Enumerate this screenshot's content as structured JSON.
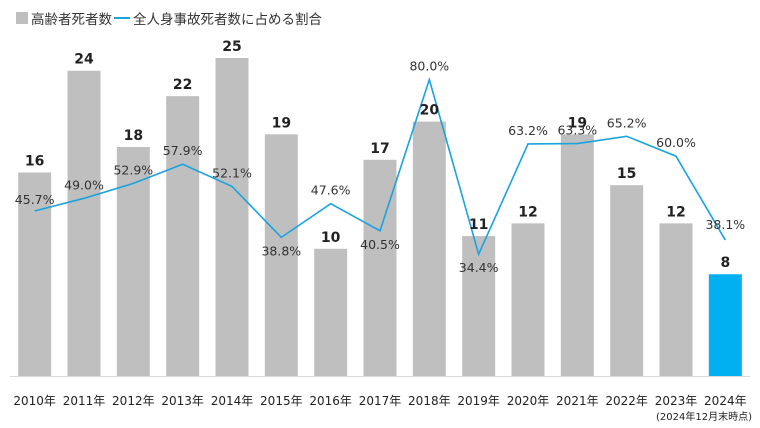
{
  "legend": {
    "bar_label": "高齢者死者数",
    "line_label": "全人身事故死者数に占める割合"
  },
  "note": "(2024年12月末時点)",
  "colors": {
    "bar": "#bfbfbf",
    "bar_highlight": "#00b0f0",
    "line": "#1aa3dd"
  },
  "chart_data": {
    "type": "bar",
    "categories": [
      "2010年",
      "2011年",
      "2012年",
      "2013年",
      "2014年",
      "2015年",
      "2016年",
      "2017年",
      "2018年",
      "2019年",
      "2020年",
      "2021年",
      "2022年",
      "2023年",
      "2024年"
    ],
    "series": [
      {
        "name": "高齢者死者数",
        "type": "bar",
        "values": [
          16,
          24,
          18,
          22,
          25,
          19,
          10,
          17,
          20,
          11,
          12,
          19,
          15,
          12,
          8
        ],
        "value_labels": [
          "16",
          "24",
          "18",
          "22",
          "25",
          "19",
          "10",
          "17",
          "20",
          "11",
          "12",
          "19",
          "15",
          "12",
          "8"
        ],
        "highlight_index": 14
      },
      {
        "name": "全人身事故死者数に占める割合",
        "type": "line",
        "values": [
          45.7,
          49.0,
          52.9,
          57.9,
          52.1,
          38.8,
          47.6,
          40.5,
          80.0,
          34.4,
          63.2,
          63.3,
          65.2,
          60.0,
          38.1
        ],
        "value_labels": [
          "45.7%",
          "49.0%",
          "52.9%",
          "57.9%",
          "52.1%",
          "38.8%",
          "47.6%",
          "40.5%",
          "80.0%",
          "34.4%",
          "63.2%",
          "63.3%",
          "65.2%",
          "60.0%",
          "38.1%"
        ]
      }
    ],
    "title": "",
    "xlabel": "",
    "ylabel": "",
    "ylim": [
      0,
      25
    ],
    "y2lim": [
      0,
      90
    ],
    "grid": false,
    "legend_position": "top-left"
  }
}
